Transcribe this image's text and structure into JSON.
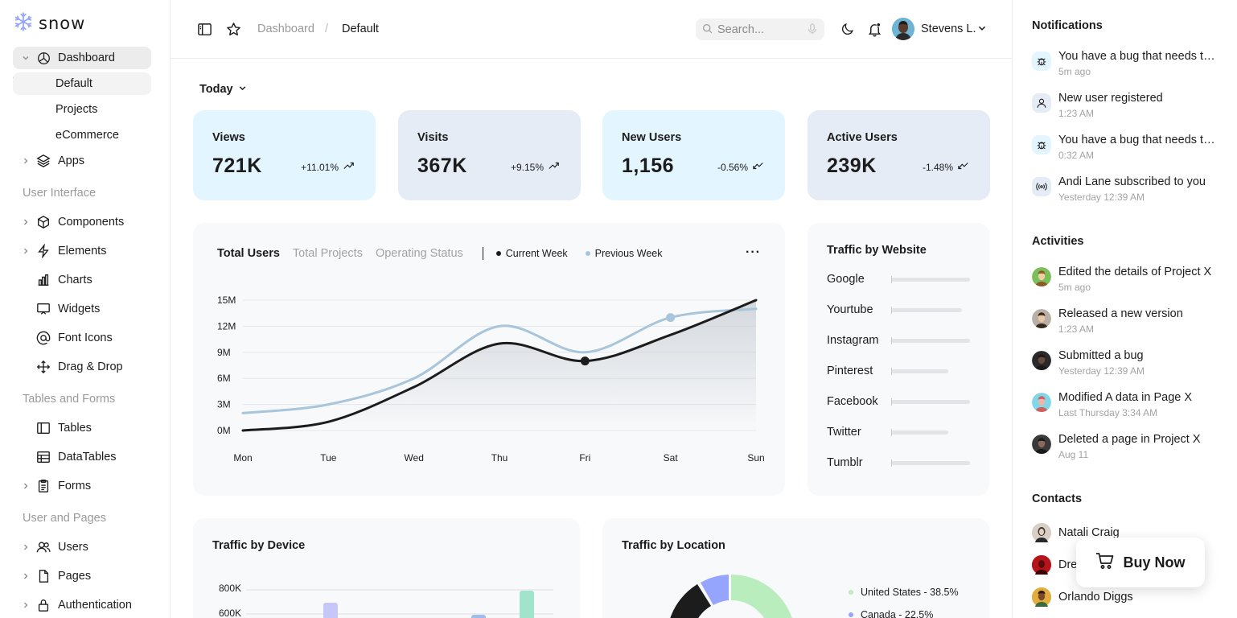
{
  "brand": {
    "name": "snow"
  },
  "sidebar": {
    "dashboard": "Dashboard",
    "sub": [
      "Default",
      "Projects",
      "eCommerce"
    ],
    "apps": "Apps",
    "section_ui": "User Interface",
    "ui_items": [
      "Components",
      "Elements",
      "Charts",
      "Widgets",
      "Font Icons",
      "Drag & Drop"
    ],
    "section_tables": "Tables and Forms",
    "table_items": [
      "Tables",
      "DataTables",
      "Forms"
    ],
    "section_users": "User and Pages",
    "user_items": [
      "Users",
      "Pages",
      "Authentication"
    ]
  },
  "topbar": {
    "crumb_parent": "Dashboard",
    "crumb_sep": "/",
    "crumb_current": "Default",
    "search_placeholder": "Search...",
    "user_name": "Stevens L."
  },
  "main": {
    "period": "Today",
    "stats": [
      {
        "label": "Views",
        "value": "721K",
        "delta": "+11.01%",
        "trend": "up"
      },
      {
        "label": "Visits",
        "value": "367K",
        "delta": "+9.15%",
        "trend": "up"
      },
      {
        "label": "New Users",
        "value": "1,156",
        "delta": "-0.56%",
        "trend": "down"
      },
      {
        "label": "Active Users",
        "value": "239K",
        "delta": "-1.48%",
        "trend": "down"
      }
    ],
    "chart_tabs": [
      "Total Users",
      "Total Projects",
      "Operating Status"
    ],
    "legend": [
      "Current Week",
      "Previous Week"
    ],
    "traffic_website_title": "Traffic by Website",
    "traffic_device_title": "Traffic by Device",
    "traffic_location_title": "Traffic by Location"
  },
  "chart_data": [
    {
      "type": "line",
      "x": [
        "Mon",
        "Tue",
        "Wed",
        "Thu",
        "Fri",
        "Sat",
        "Sun"
      ],
      "ylim": [
        0,
        15
      ],
      "yticks": [
        "0M",
        "3M",
        "6M",
        "9M",
        "12M",
        "15M"
      ],
      "series": [
        {
          "name": "Current Week",
          "values": [
            0,
            1,
            5,
            10,
            8,
            11,
            15
          ],
          "color": "#1c1c1c"
        },
        {
          "name": "Previous Week",
          "values": [
            2,
            3,
            6,
            12,
            9,
            13,
            14
          ],
          "color": "#a8c5da"
        }
      ]
    },
    {
      "type": "bar",
      "categories": [
        "Google",
        "Yourtube",
        "Instagram",
        "Pinterest",
        "Facebook",
        "Twitter",
        "Tumblr"
      ],
      "values": [
        1.0,
        0.9,
        1.0,
        0.72,
        1.0,
        0.72,
        1.0
      ]
    },
    {
      "type": "bar",
      "yticks": [
        "600K",
        "800K"
      ],
      "partial": true
    },
    {
      "type": "pie",
      "labels": [
        "United States - 38.5%",
        "Canada - 22.5%"
      ],
      "values": [
        38.5,
        22.5
      ],
      "colors": [
        "#baedbd",
        "#95a4fc",
        "#1c1c1c"
      ]
    }
  ],
  "right_panel": {
    "notifications_title": "Notifications",
    "notifications": [
      {
        "text": "You have a bug that needs to be fixed.",
        "time": "5m ago",
        "icon": "bug-icon",
        "bg": "#e3f5ff"
      },
      {
        "text": "New user registered",
        "time": "1:23 AM",
        "icon": "user-icon",
        "bg": "#e5ecf6"
      },
      {
        "text": "You have a bug that needs to be fixed.",
        "time": "0:32 AM",
        "icon": "bug-icon",
        "bg": "#e3f5ff"
      },
      {
        "text": "Andi Lane subscribed to you",
        "time": "Yesterday 12:39 AM",
        "icon": "broadcast-icon",
        "bg": "#e5ecf6"
      }
    ],
    "activities_title": "Activities",
    "activities": [
      {
        "text": "Edited the details of Project X",
        "time": "5m ago"
      },
      {
        "text": "Released a new version",
        "time": "1:23 AM"
      },
      {
        "text": "Submitted a bug",
        "time": "Yesterday 12:39 AM"
      },
      {
        "text": "Modified A data in Page X",
        "time": "Last Thursday 3:34 AM"
      },
      {
        "text": "Deleted a page in Project X",
        "time": "Aug 11"
      }
    ],
    "contacts_title": "Contacts",
    "contacts": [
      "Natali Craig",
      "Drew Cano",
      "Orlando Diggs"
    ]
  },
  "buy_now": "Buy Now"
}
